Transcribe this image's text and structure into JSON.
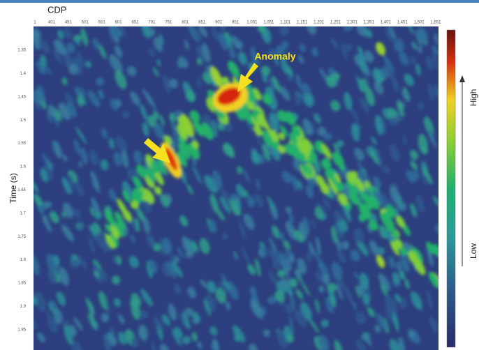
{
  "axes": {
    "x_title": "CDP",
    "x_ticks": [
      "1",
      "401",
      "451",
      "501",
      "551",
      "601",
      "651",
      "701",
      "751",
      "801",
      "851",
      "901",
      "951",
      "1,001",
      "1,051",
      "1,101",
      "1,151",
      "1,201",
      "1,251",
      "1,301",
      "1,351",
      "1,401",
      "1,451",
      "1,501",
      "1,551"
    ],
    "y_title": "Time (s)",
    "y_ticks": [
      "1.35",
      "1.4",
      "1.45",
      "1.5",
      "1.55",
      "1.6",
      "1.65",
      "1.7",
      "1.75",
      "1.8",
      "1.85",
      "1.9",
      "1.95"
    ]
  },
  "annotation": "Anomaly",
  "colorbar": {
    "high": "High",
    "low": "Low"
  }
}
